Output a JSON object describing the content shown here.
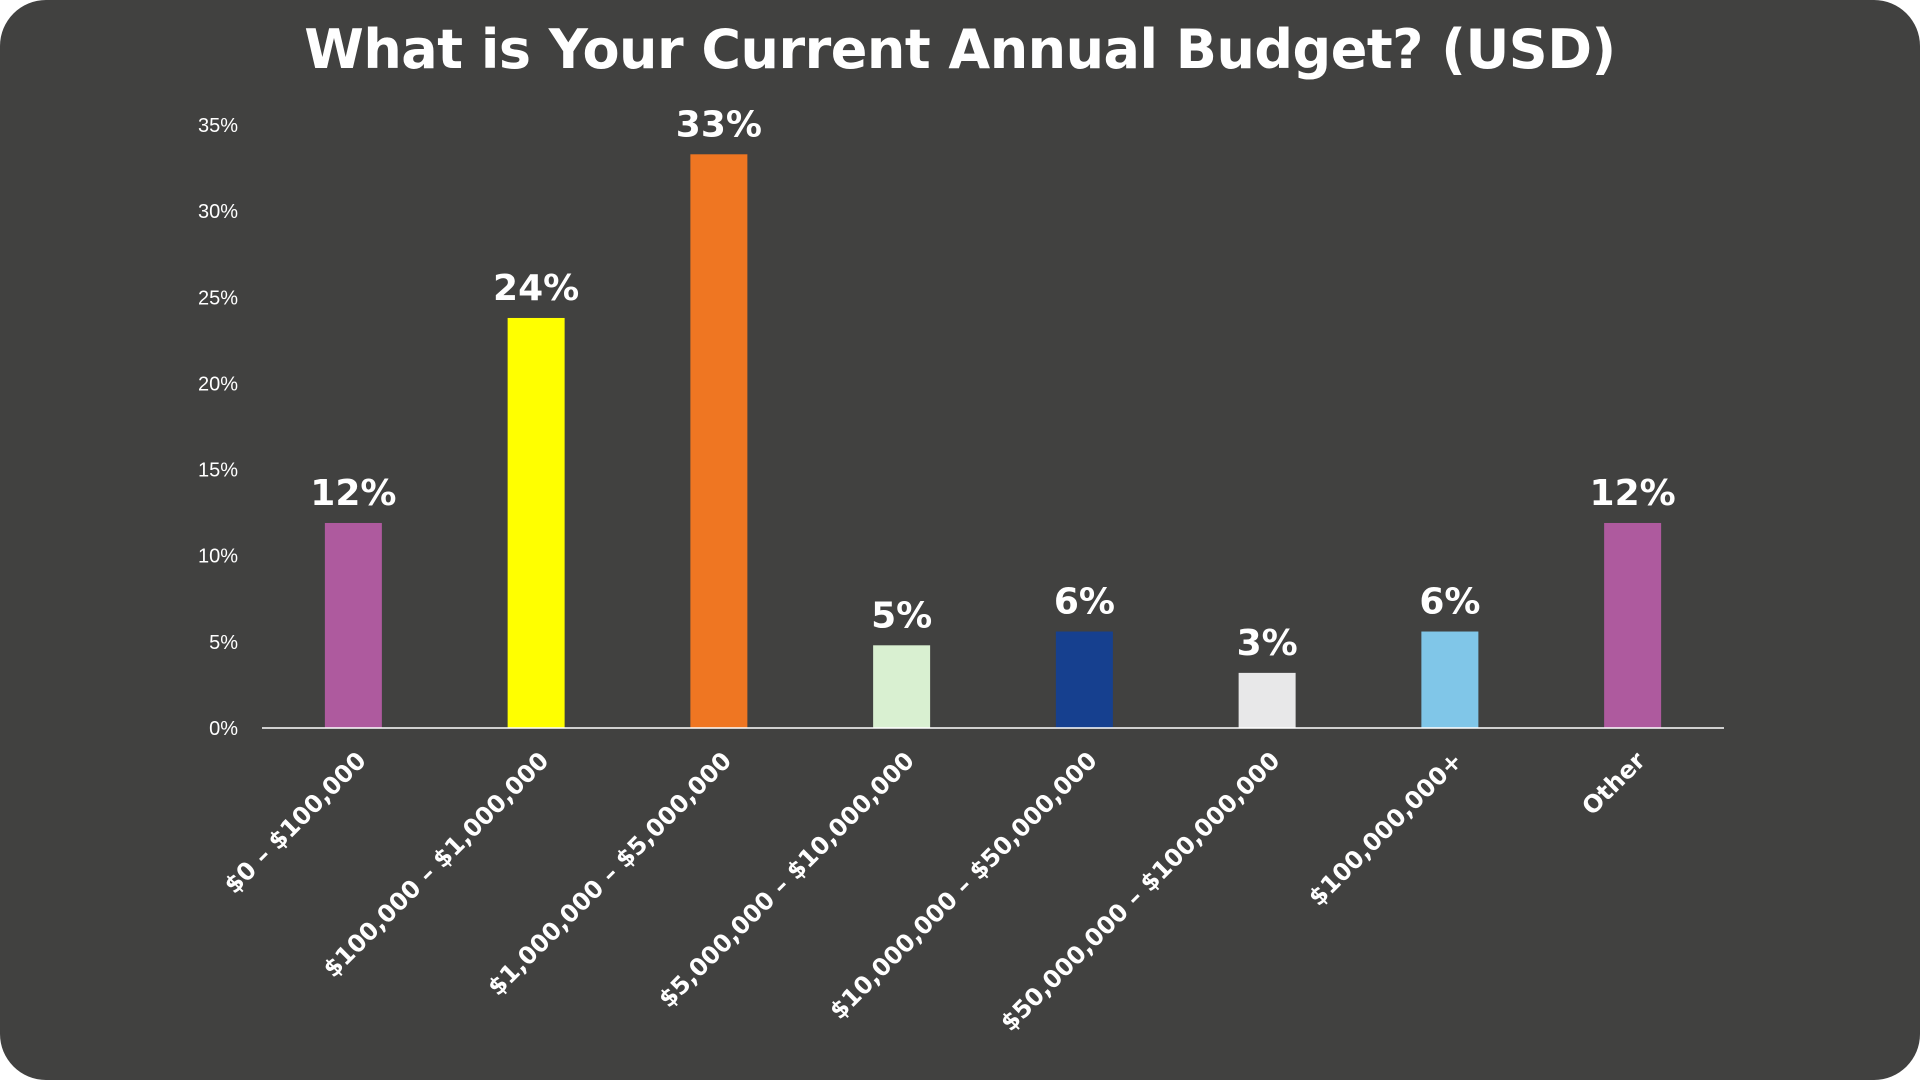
{
  "chart_data": {
    "type": "bar",
    "title": "What is Your Current Annual Budget? (USD)",
    "xlabel": "",
    "ylabel": "",
    "ylim": [
      0,
      35
    ],
    "y_ticks": [
      0,
      5,
      10,
      15,
      20,
      25,
      30,
      35
    ],
    "y_tick_suffix": "%",
    "grid": false,
    "legend": "none",
    "categories": [
      "$0 – $100,000",
      "$100,000 – $1,000,000",
      "$1,000,000 – $5,000,000",
      "$5,000,000 – $10,000,000",
      "$10,000,000 – $50,000,000",
      "$50,000,000 – $100,000,000",
      "$100,000,000+",
      "Other"
    ],
    "values": [
      11.9,
      23.8,
      33.3,
      4.8,
      5.6,
      3.2,
      5.6,
      11.9
    ],
    "data_labels": [
      "12%",
      "24%",
      "33%",
      "5%",
      "6%",
      "3%",
      "6%",
      "12%"
    ],
    "colors": [
      "#ae5a9e",
      "#ffff00",
      "#ef7622",
      "#d9f0d1",
      "#16408f",
      "#e8e8e9",
      "#80c6e8",
      "#ae5a9e"
    ]
  },
  "style": {
    "background": "#414140",
    "axis_color": "#ffffff",
    "text_color": "#ffffff"
  }
}
